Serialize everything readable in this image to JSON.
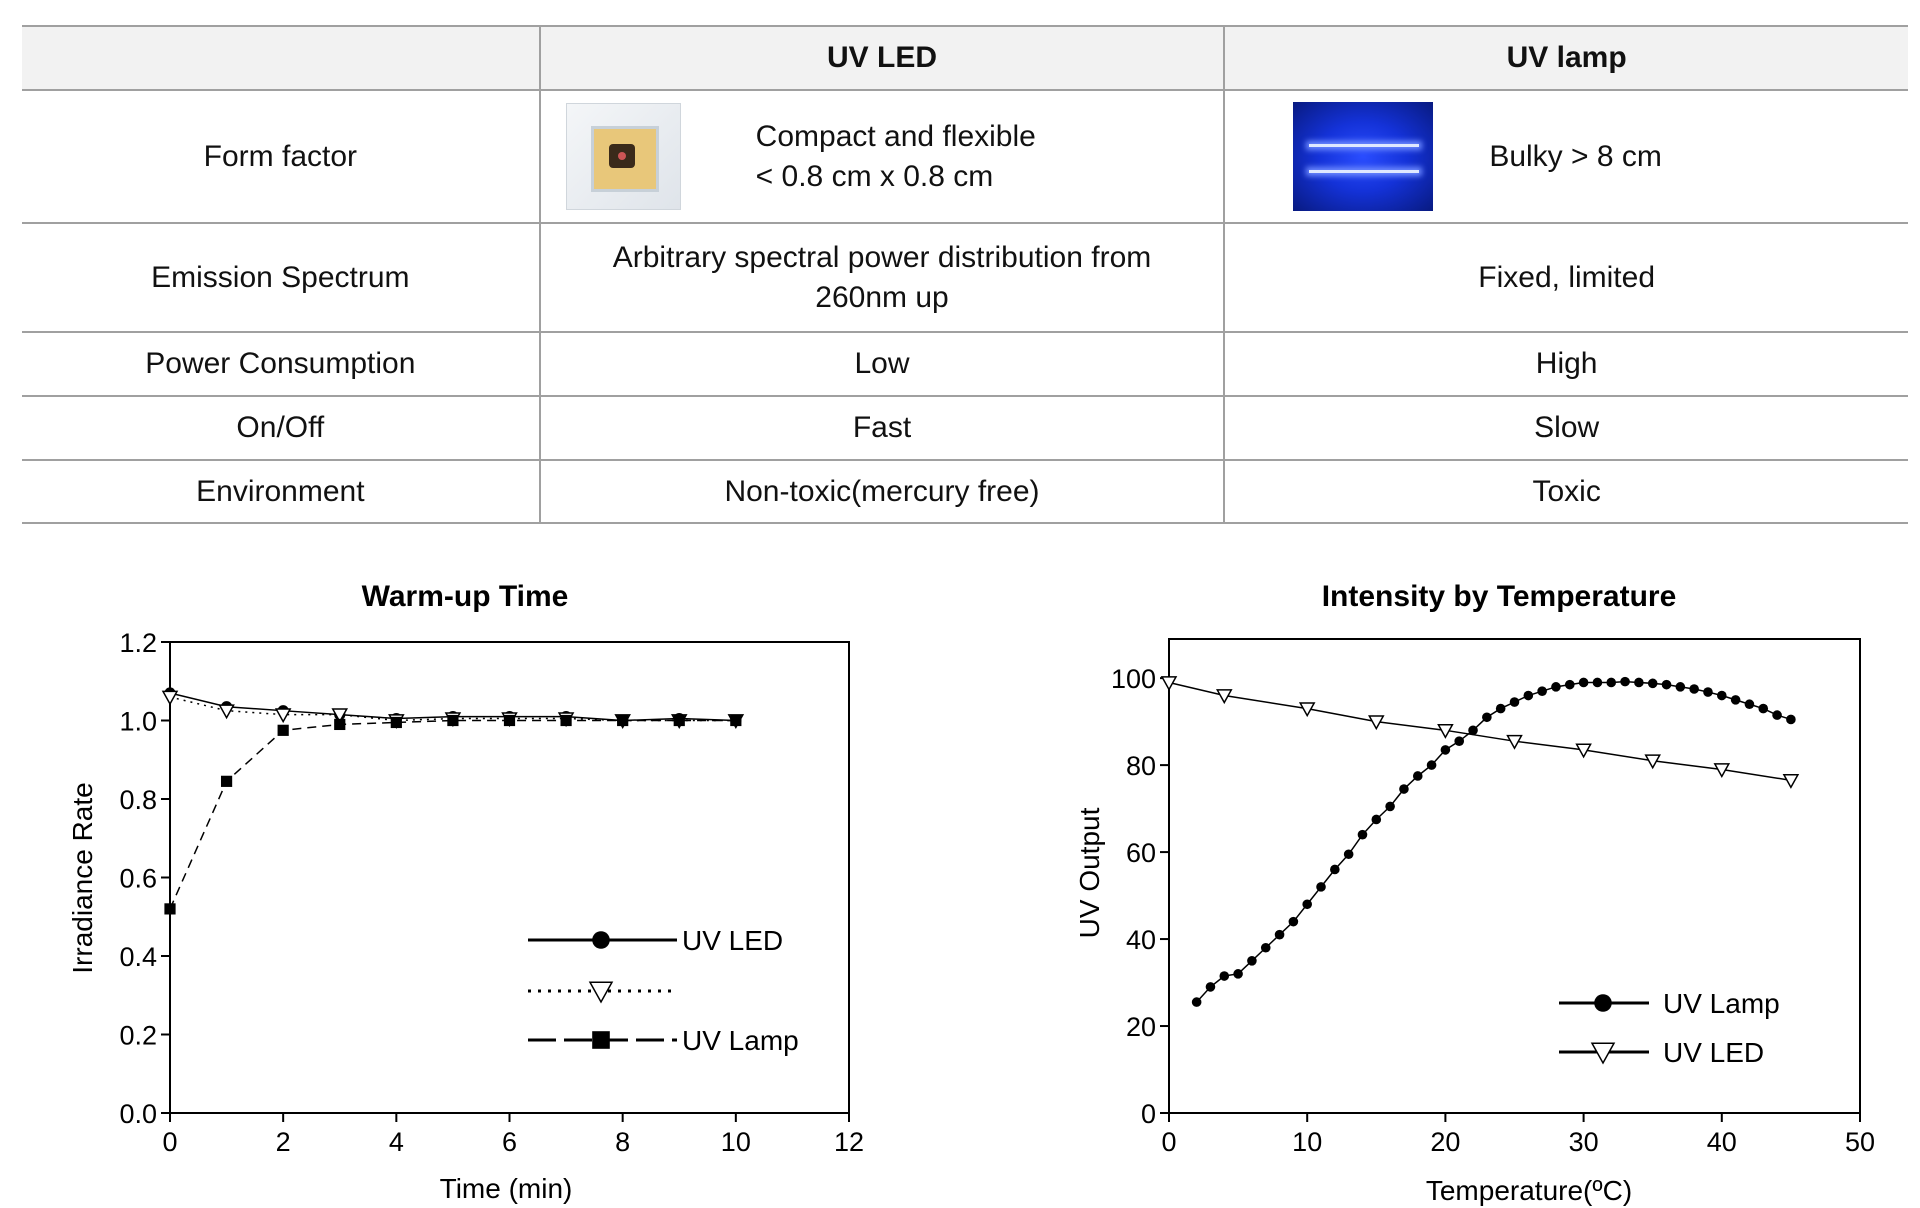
{
  "table": {
    "headers": [
      "",
      "UV LED",
      "UV lamp"
    ],
    "rows": [
      {
        "label": "Form factor",
        "led": [
          "Compact and flexible",
          "< 0.8 cm x 0.8 cm"
        ],
        "lamp": "Bulky > 8 cm"
      },
      {
        "label": "Emission Spectrum",
        "led": [
          "Arbitrary spectral power distribution from",
          "260nm up"
        ],
        "lamp": "Fixed, limited"
      },
      {
        "label": "Power Consumption",
        "led": "Low",
        "lamp": "High"
      },
      {
        "label": "On/Off",
        "led": "Fast",
        "lamp": "Slow"
      },
      {
        "label": "Environment",
        "led": "Non-toxic(mercury free)",
        "lamp": "Toxic"
      }
    ]
  },
  "chart_data": [
    {
      "type": "line",
      "title": "Warm-up Time",
      "xlabel": "Time (min)",
      "ylabel": "Irradiance Rate",
      "xlim": [
        0,
        12
      ],
      "ylim": [
        0,
        1.2
      ],
      "xticks": [
        "0",
        "2",
        "4",
        "6",
        "8",
        "10",
        "12"
      ],
      "yticks": [
        "0.0",
        "0.2",
        "0.4",
        "0.6",
        "0.8",
        "1.0",
        "1.2"
      ],
      "grid": false,
      "legend": "bottom-right",
      "x": [
        0,
        1,
        2,
        3,
        4,
        5,
        6,
        7,
        8,
        9,
        10
      ],
      "series": [
        {
          "name": "UV LED",
          "marker": "filled-diamond",
          "line": "solid",
          "values": [
            1.07,
            1.035,
            1.025,
            1.015,
            1.005,
            1.01,
            1.01,
            1.01,
            1.0,
            1.005,
            1.0
          ]
        },
        {
          "name": "",
          "marker": "open-triangle-down",
          "line": "dotted",
          "values": [
            1.06,
            1.025,
            1.015,
            1.015,
            1.0,
            1.005,
            1.005,
            1.005,
            1.0,
            1.0,
            1.0
          ]
        },
        {
          "name": "UV Lamp",
          "marker": "filled-square",
          "line": "dashed",
          "values": [
            0.52,
            0.845,
            0.975,
            0.99,
            0.995,
            1.0,
            1.0,
            1.0,
            1.0,
            1.0,
            1.0
          ]
        }
      ]
    },
    {
      "type": "line",
      "title": "Intensity by Temperature",
      "xlabel": "Temperature(ºC)",
      "ylabel": "UV Output",
      "xlim": [
        0,
        50
      ],
      "ylim": [
        0,
        109
      ],
      "xticks": [
        "0",
        "10",
        "20",
        "30",
        "40",
        "50"
      ],
      "yticks": [
        "0",
        "20",
        "40",
        "60",
        "80",
        "100"
      ],
      "grid": false,
      "legend": "bottom-right",
      "series": [
        {
          "name": "UV Lamp",
          "marker": "filled-diamond",
          "line": "solid",
          "x": [
            2,
            3,
            4,
            5,
            6,
            7,
            8,
            9,
            10,
            11,
            12,
            13,
            14,
            15,
            16,
            17,
            18,
            19,
            20,
            21,
            22,
            23,
            24,
            25,
            26,
            27,
            28,
            29,
            30,
            31,
            32,
            33,
            34,
            35,
            36,
            37,
            38,
            39,
            40,
            41,
            42,
            43,
            44,
            45
          ],
          "values": [
            25.5,
            29,
            31.5,
            32,
            35,
            38,
            41,
            44,
            48,
            52,
            56,
            59.5,
            64,
            67.5,
            70.5,
            74.5,
            77.5,
            80,
            83.5,
            85.5,
            88,
            91,
            93,
            94.5,
            96,
            97,
            98,
            98.5,
            99,
            99,
            99,
            99.2,
            99,
            98.8,
            98.5,
            98,
            97.5,
            96.8,
            96,
            95,
            94,
            93,
            91.5,
            90.5
          ]
        },
        {
          "name": "UV LED",
          "marker": "open-triangle-down",
          "line": "solid",
          "x": [
            0,
            4,
            10,
            15,
            20,
            25,
            30,
            35,
            40,
            45
          ],
          "values": [
            99,
            96,
            93,
            90,
            88,
            85.5,
            83.5,
            81,
            79,
            76.5
          ]
        }
      ]
    }
  ]
}
